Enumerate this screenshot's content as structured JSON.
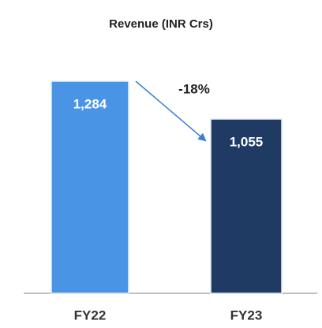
{
  "chart_data": {
    "type": "bar",
    "title": "Revenue (INR Crs)",
    "categories": [
      "FY22",
      "FY23"
    ],
    "values": [
      1284,
      1055
    ],
    "value_labels": [
      "1,284",
      "1,055"
    ],
    "colors": [
      "#4a94e6",
      "#1f3b63"
    ],
    "annotation": "-18%"
  }
}
